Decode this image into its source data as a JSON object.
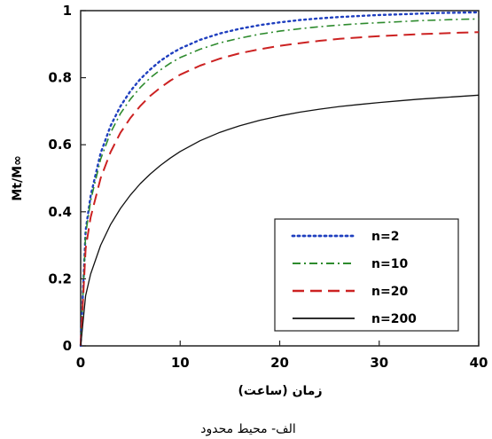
{
  "chart_data": {
    "type": "line",
    "title": "",
    "xlabel": "زمان (ساعت)",
    "ylabel": "Mt/M∞",
    "xlim": [
      0,
      40
    ],
    "ylim": [
      0,
      1
    ],
    "x_ticks": [
      "0",
      "10",
      "20",
      "30",
      "40"
    ],
    "y_ticks": [
      "0",
      "0.2",
      "0.4",
      "0.6",
      "0.8",
      "1"
    ],
    "grid": false,
    "legend_position": "bottom-right",
    "caption": "الف- محیط محدود",
    "x": [
      0,
      0.5,
      1,
      2,
      3,
      4,
      5,
      6,
      7,
      8,
      9,
      10,
      12,
      14,
      16,
      18,
      20,
      22,
      24,
      26,
      28,
      30,
      32,
      34,
      36,
      38,
      40
    ],
    "series": [
      {
        "name": "n=2",
        "color": "#1f3fbf",
        "dash": "dotted",
        "values": [
          0,
          0.344,
          0.447,
          0.575,
          0.656,
          0.715,
          0.76,
          0.796,
          0.825,
          0.85,
          0.87,
          0.887,
          0.913,
          0.932,
          0.946,
          0.957,
          0.965,
          0.972,
          0.977,
          0.981,
          0.984,
          0.987,
          0.989,
          0.991,
          0.993,
          0.994,
          0.995
        ]
      },
      {
        "name": "n=10",
        "color": "#2e8b2e",
        "dash": "dashdot",
        "values": [
          0,
          0.333,
          0.433,
          0.557,
          0.636,
          0.693,
          0.736,
          0.771,
          0.8,
          0.823,
          0.843,
          0.86,
          0.885,
          0.904,
          0.918,
          0.93,
          0.939,
          0.946,
          0.952,
          0.957,
          0.961,
          0.964,
          0.967,
          0.97,
          0.972,
          0.974,
          0.975
        ]
      },
      {
        "name": "n=20",
        "color": "#cc2222",
        "dash": "dashed",
        "values": [
          0,
          0.29,
          0.383,
          0.5,
          0.578,
          0.636,
          0.68,
          0.716,
          0.746,
          0.77,
          0.791,
          0.809,
          0.836,
          0.857,
          0.873,
          0.885,
          0.895,
          0.903,
          0.91,
          0.916,
          0.92,
          0.924,
          0.927,
          0.93,
          0.932,
          0.934,
          0.936
        ]
      },
      {
        "name": "n=200",
        "color": "#111111",
        "dash": "solid",
        "values": [
          0,
          0.15,
          0.214,
          0.3,
          0.362,
          0.41,
          0.45,
          0.484,
          0.513,
          0.538,
          0.56,
          0.58,
          0.612,
          0.637,
          0.657,
          0.673,
          0.686,
          0.697,
          0.706,
          0.714,
          0.72,
          0.726,
          0.731,
          0.736,
          0.74,
          0.744,
          0.748
        ]
      }
    ]
  }
}
